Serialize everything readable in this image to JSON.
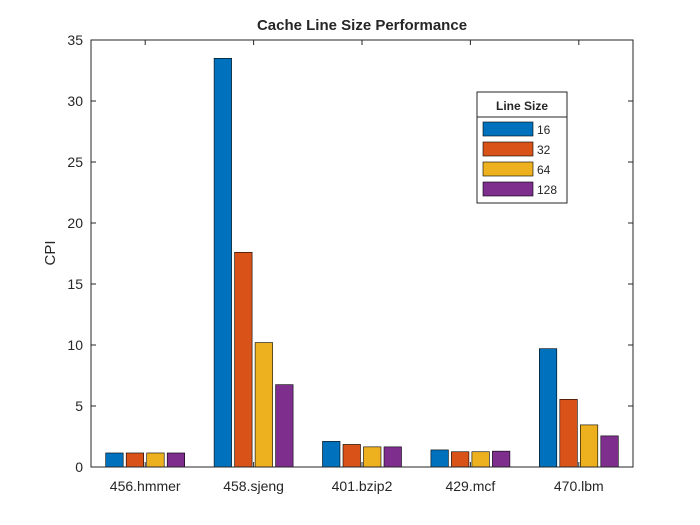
{
  "chart_data": {
    "type": "bar",
    "title": "Cache Line Size Performance",
    "xlabel": "",
    "ylabel": "CPI",
    "ylim": [
      0,
      35
    ],
    "yticks": [
      0,
      5,
      10,
      15,
      20,
      25,
      30,
      35
    ],
    "grid": false,
    "legend": {
      "title": "Line Size",
      "placement": "top-right"
    },
    "categories": [
      "456.hmmer",
      "458.sjeng",
      "401.bzip2",
      "429.mcf",
      "470.lbm"
    ],
    "series": [
      {
        "name": "16",
        "color": "#0072BD",
        "values": [
          1.15,
          33.5,
          2.1,
          1.4,
          9.7
        ]
      },
      {
        "name": "32",
        "color": "#D95319",
        "values": [
          1.15,
          17.6,
          1.85,
          1.25,
          5.55
        ]
      },
      {
        "name": "64",
        "color": "#EDB120",
        "values": [
          1.15,
          10.2,
          1.65,
          1.25,
          3.45
        ]
      },
      {
        "name": "128",
        "color": "#7E2F8E",
        "values": [
          1.15,
          6.75,
          1.65,
          1.3,
          2.55
        ]
      }
    ]
  }
}
